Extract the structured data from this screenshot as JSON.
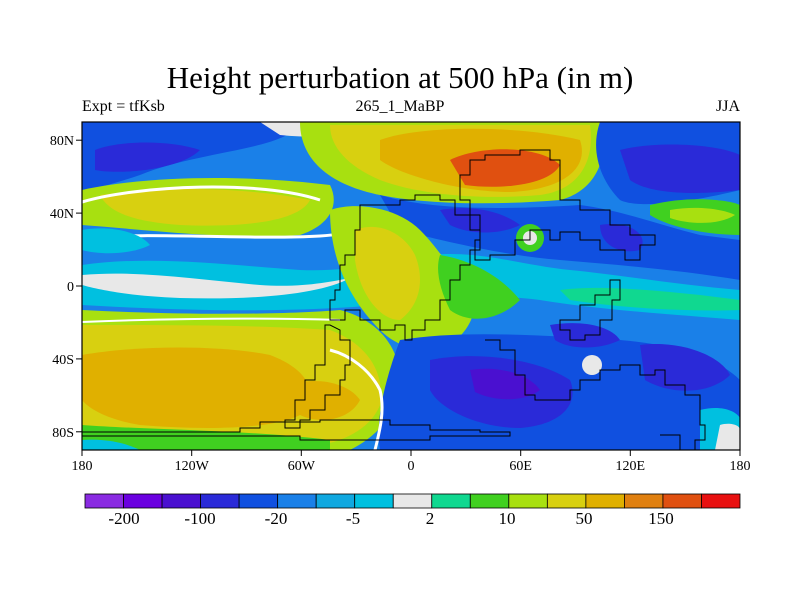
{
  "title": "Height perturbation at 500 hPa (in m)",
  "subtitle_left": "Expt = tfKsb",
  "subtitle_center": "265_1_MaBP",
  "subtitle_right": "JJA",
  "axes": {
    "x_ticks": [
      "180",
      "120W",
      "60W",
      "0",
      "60E",
      "120E",
      "180"
    ],
    "y_ticks": [
      "80N",
      "40N",
      "0",
      "40S",
      "80S"
    ],
    "lon_range": [
      -180,
      180
    ],
    "lat_range": [
      -90,
      90
    ]
  },
  "colorbar": {
    "colors": [
      "#8a2be2",
      "#6a00e0",
      "#4a10d0",
      "#2a2ad8",
      "#1050e0",
      "#1a80e8",
      "#10a8e0",
      "#00c0e0",
      "#e8e8e8",
      "#10d890",
      "#40d020",
      "#a8e010",
      "#d8d010",
      "#e0b000",
      "#e08010",
      "#e05010",
      "#e81010"
    ],
    "labels": [
      "-200",
      "-100",
      "-20",
      "-5",
      "2",
      "10",
      "50",
      "150"
    ]
  },
  "fills": {
    "background_neutral": "#e8e8e8",
    "blue_mid": "#1a80e8",
    "blue_deep": "#1050e0",
    "blue_dark": "#2a2ad8",
    "purple": "#4a10d0",
    "cyan": "#00c0e0",
    "green": "#10d890",
    "lime": "#40d020",
    "yellowgreen": "#a8e010",
    "yellow": "#d8d010",
    "orange": "#e0b000",
    "darkorange": "#e08010",
    "red": "#e05010"
  }
}
